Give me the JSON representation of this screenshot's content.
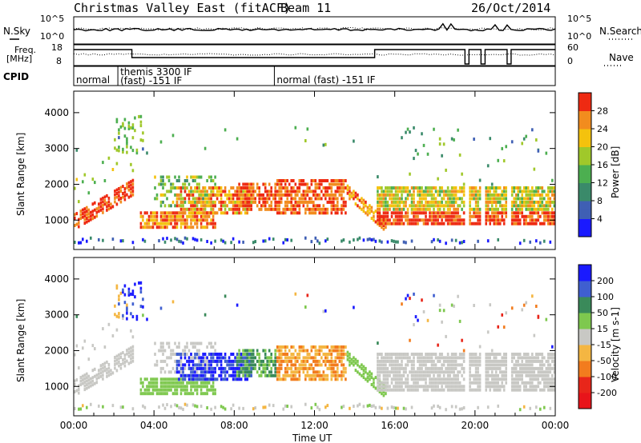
{
  "header": {
    "title": "Christmas Valley East (fitACF)",
    "beam": "Beam 11",
    "date": "26/Oct/2014"
  },
  "noise_panel": {
    "left_label": "N.Sky",
    "right_label": "N.Search",
    "tick_top": "10^5",
    "tick_bottom": "10^0",
    "right_tick_top": "10^5",
    "right_tick_bottom": "10^0"
  },
  "freq_panel": {
    "label_line1": "Freq.",
    "label_line2": "[MHz]",
    "tick_top": "18",
    "tick_bottom": "8",
    "right_label": "Nave",
    "right_tick_top": "60",
    "right_tick_bottom": "0"
  },
  "cpid_panel": {
    "label": "CPID",
    "segments": [
      {
        "start_hour": 0,
        "lines": [
          "normal"
        ]
      },
      {
        "start_hour": 2.2,
        "lines": [
          "themis 3300 IF",
          "(fast) -151 IF"
        ]
      },
      {
        "start_hour": 10,
        "lines": [
          "normal (fast) -151 IF"
        ]
      }
    ]
  },
  "chart_data": [
    {
      "type": "heatmap",
      "title": "",
      "ylabel": "Slant Range [km]",
      "xlabel": "",
      "x_ticks": [
        "00:00",
        "04:00",
        "08:00",
        "12:00",
        "16:00",
        "20:00",
        "00:00"
      ],
      "x_tick_hours": [
        0,
        4,
        8,
        12,
        16,
        20,
        24
      ],
      "xlim": [
        0,
        24
      ],
      "y_ticks": [
        1000,
        2000,
        3000,
        4000
      ],
      "ylim": [
        180,
        4600
      ],
      "colorbar": {
        "label": "Power [dB]",
        "ticks": [
          "4",
          "8",
          "12",
          "16",
          "20",
          "24",
          "28"
        ],
        "levels": [
          0,
          2,
          4,
          6,
          8,
          10,
          12,
          14,
          16,
          18,
          20,
          22,
          24,
          26,
          28,
          30
        ],
        "colors": [
          "#1a1aff",
          "#1a1aff",
          "#3f5fb4",
          "#3f5fb4",
          "#3a8a6a",
          "#3a8a6a",
          "#4caf50",
          "#4caf50",
          "#a0c82a",
          "#a0c82a",
          "#f4c20d",
          "#f4c20d",
          "#f28c1e",
          "#f28c1e",
          "#ee2a12",
          "#ee2a12"
        ]
      }
    },
    {
      "type": "heatmap",
      "title": "",
      "ylabel": "Slant Range [km]",
      "xlabel": "Time UT",
      "x_ticks": [
        "00:00",
        "04:00",
        "08:00",
        "12:00",
        "16:00",
        "20:00",
        "00:00"
      ],
      "x_tick_hours": [
        0,
        4,
        8,
        12,
        16,
        20,
        24
      ],
      "xlim": [
        0,
        24
      ],
      "y_ticks": [
        1000,
        2000,
        3000,
        4000
      ],
      "ylim": [
        180,
        4600
      ],
      "colorbar": {
        "label": "Velocity [m s-1]",
        "ticks": [
          "200",
          "100",
          "50",
          "15",
          "-15",
          "-50",
          "-100",
          "-200"
        ],
        "colors": [
          "#1a1aff",
          "#3f5fd0",
          "#3a8a5a",
          "#7ec84e",
          "#c8c8c4",
          "#f4b642",
          "#f27c1e",
          "#e8261a",
          "#e8141a"
        ]
      }
    }
  ],
  "ground_scatter_color": "#c8c8c4"
}
